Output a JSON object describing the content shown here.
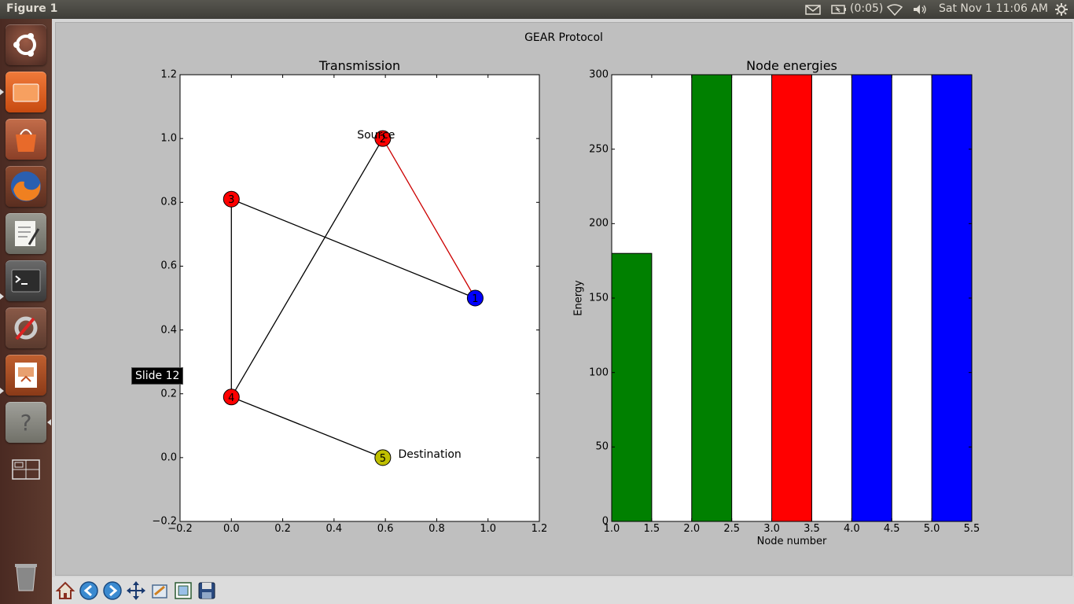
{
  "top_panel": {
    "window_title": "Figure 1",
    "battery": "(0:05)",
    "datetime": "Sat Nov  1  11:06 AM"
  },
  "tooltip": "Slide 12",
  "figure": {
    "suptitle": "GEAR Protocol"
  },
  "chart_data": [
    {
      "type": "scatter",
      "title": "Transmission",
      "xlabel": "",
      "ylabel": "",
      "xlim": [
        -0.2,
        1.2
      ],
      "ylim": [
        -0.2,
        1.2
      ],
      "xticks": [
        "−0.2",
        "0.0",
        "0.2",
        "0.4",
        "0.6",
        "0.8",
        "1.0",
        "1.2"
      ],
      "yticks": [
        "−0.2",
        "0.0",
        "0.2",
        "0.4",
        "0.6",
        "0.8",
        "1.0",
        "1.2"
      ],
      "nodes": [
        {
          "id": "1",
          "x": 0.95,
          "y": 0.5,
          "color": "#0000ff"
        },
        {
          "id": "2",
          "x": 0.59,
          "y": 1.0,
          "color": "#ff0000"
        },
        {
          "id": "3",
          "x": 0.0,
          "y": 0.81,
          "color": "#ff0000"
        },
        {
          "id": "4",
          "x": 0.0,
          "y": 0.19,
          "color": "#ff0000"
        },
        {
          "id": "5",
          "x": 0.59,
          "y": 0.0,
          "color": "#bfbf00"
        }
      ],
      "edges": [
        {
          "from": "2",
          "to": "1",
          "color": "#cc0000"
        },
        {
          "from": "3",
          "to": "1",
          "color": "#000000"
        },
        {
          "from": "3",
          "to": "4",
          "color": "#000000"
        },
        {
          "from": "2",
          "to": "4",
          "color": "#000000"
        },
        {
          "from": "4",
          "to": "5",
          "color": "#000000"
        }
      ],
      "annotations": [
        {
          "text": "Source",
          "x": 0.49,
          "y": 1.0
        },
        {
          "text": "Destination",
          "x": 0.65,
          "y": 0.0
        }
      ]
    },
    {
      "type": "bar",
      "title": "Node energies",
      "xlabel": "Node number",
      "ylabel": "Energy",
      "xlim": [
        1.0,
        5.5
      ],
      "ylim": [
        0,
        300
      ],
      "xticks": [
        "1.0",
        "1.5",
        "2.0",
        "2.5",
        "3.0",
        "3.5",
        "4.0",
        "4.5",
        "5.0",
        "5.5"
      ],
      "yticks": [
        "0",
        "50",
        "100",
        "150",
        "200",
        "250",
        "300"
      ],
      "bar_width": 0.5,
      "bars": [
        {
          "x": 1.0,
          "value": 180,
          "color": "#008000"
        },
        {
          "x": 2.0,
          "value": 300,
          "color": "#008000"
        },
        {
          "x": 3.0,
          "value": 300,
          "color": "#ff0000"
        },
        {
          "x": 4.0,
          "value": 300,
          "color": "#0000ff"
        },
        {
          "x": 5.0,
          "value": 300,
          "color": "#0000ff"
        }
      ]
    }
  ]
}
